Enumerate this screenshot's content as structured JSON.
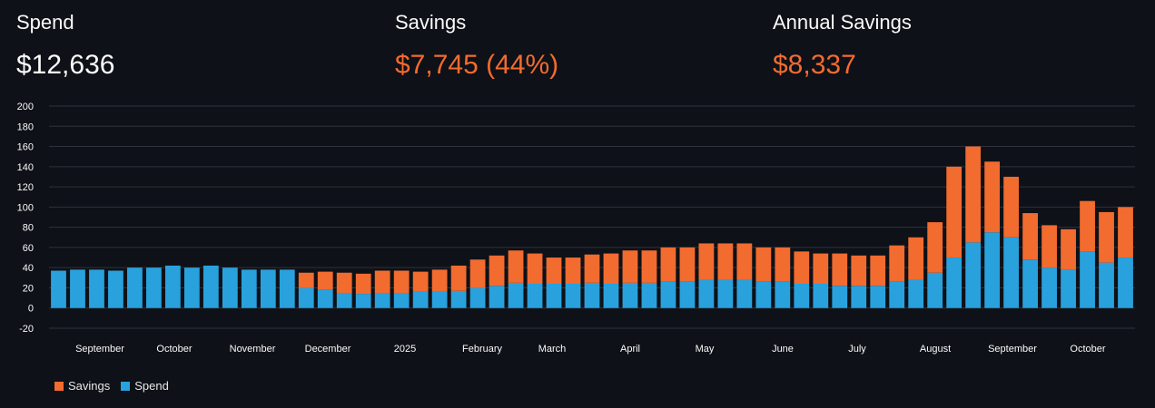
{
  "metrics": [
    {
      "label": "Spend",
      "value": "$12,636"
    },
    {
      "label": "Savings",
      "value": "$7,745 (44%)"
    },
    {
      "label": "Annual Savings",
      "value": "$8,337"
    }
  ],
  "colors": {
    "background": "#0e1117",
    "savings": "#f26b2f",
    "spend": "#29a1dd",
    "grid": "#2e323c",
    "text": "#fafafa"
  },
  "chart_data": {
    "type": "bar",
    "stacked": true,
    "title": "",
    "xlabel": "",
    "ylabel": "",
    "ylim": [
      -20,
      200
    ],
    "y_ticks": [
      -20,
      0,
      20,
      40,
      60,
      80,
      100,
      120,
      140,
      160,
      180,
      200
    ],
    "grid": true,
    "legend_position": "bottom-left",
    "x_tick_labels": [
      "September",
      "October",
      "November",
      "December",
      "2025",
      "February",
      "March",
      "April",
      "May",
      "June",
      "July",
      "August",
      "September",
      "October"
    ],
    "categories": [
      "Aug-W4",
      "Sep-W1",
      "Sep-W2",
      "Sep-W3",
      "Sep-W4",
      "Oct-W1",
      "Oct-W2",
      "Oct-W3",
      "Oct-W4",
      "Nov-W1",
      "Nov-W2",
      "Nov-W3",
      "Nov-W4",
      "Dec-W1",
      "Dec-W2",
      "Dec-W3",
      "Dec-W4",
      "Jan-W1",
      "Jan-W2",
      "Jan-W3",
      "Jan-W4",
      "Feb-W1",
      "Feb-W2",
      "Feb-W3",
      "Feb-W4",
      "Mar-W1",
      "Mar-W2",
      "Mar-W3",
      "Mar-W4",
      "Apr-W1",
      "Apr-W2",
      "Apr-W3",
      "Apr-W4",
      "May-W1",
      "May-W2",
      "May-W3",
      "May-W4",
      "Jun-W1",
      "Jun-W2",
      "Jun-W3",
      "Jun-W4",
      "Jul-W1",
      "Jul-W2",
      "Jul-W3",
      "Jul-W4",
      "Aug-W1",
      "Aug-W2",
      "Aug-W3",
      "Aug-W4",
      "Sep-W1",
      "Sep-W2",
      "Sep-W3",
      "Sep-W4",
      "Oct-W1",
      "Oct-W2",
      "Oct-W3",
      "Oct-W4"
    ],
    "series": [
      {
        "name": "Spend",
        "values": [
          37,
          38,
          38,
          37,
          40,
          40,
          42,
          40,
          42,
          40,
          38,
          38,
          38,
          20,
          18,
          15,
          14,
          15,
          15,
          16,
          16,
          17,
          20,
          22,
          25,
          24,
          24,
          24,
          25,
          24,
          25,
          25,
          26,
          26,
          28,
          28,
          28,
          26,
          26,
          24,
          24,
          22,
          22,
          22,
          26,
          28,
          35,
          50,
          65,
          75,
          70,
          48,
          40,
          38,
          56,
          45,
          50
        ]
      },
      {
        "name": "Savings",
        "values": [
          0,
          0,
          0,
          0,
          0,
          0,
          0,
          0,
          0,
          0,
          0,
          0,
          0,
          15,
          18,
          20,
          20,
          22,
          22,
          20,
          22,
          25,
          28,
          30,
          32,
          30,
          26,
          26,
          28,
          30,
          32,
          32,
          34,
          34,
          36,
          36,
          36,
          34,
          34,
          32,
          30,
          32,
          30,
          30,
          36,
          42,
          50,
          90,
          95,
          70,
          60,
          46,
          42,
          40,
          50,
          50,
          50
        ]
      }
    ],
    "legend": [
      "Savings",
      "Spend"
    ]
  },
  "legend": {
    "savings": "Savings",
    "spend": "Spend"
  }
}
